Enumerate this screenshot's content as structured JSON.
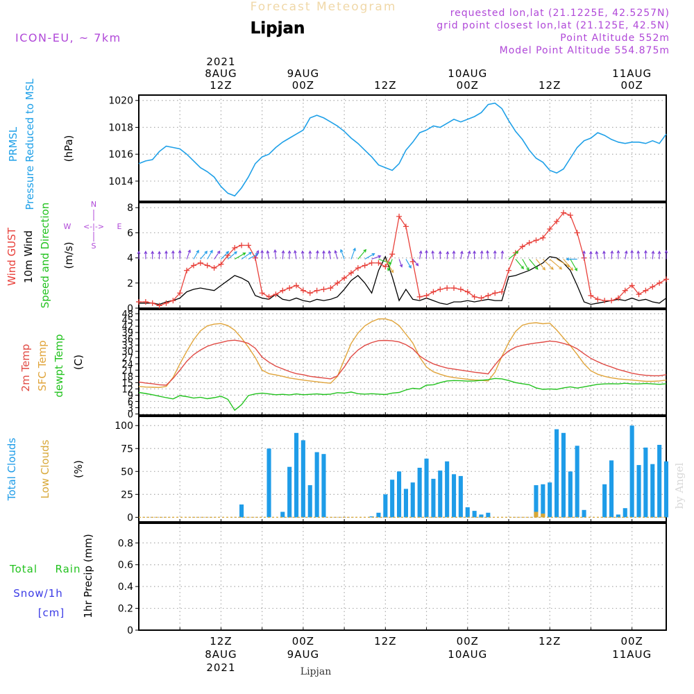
{
  "header": {
    "product": "Forecast Meteogram",
    "location": "Lipjan",
    "model": "ICON-EU, ~ 7km",
    "requested": "requested lon,lat (21.1225E, 42.5257N)",
    "grid_point": "grid point closest lon,lat (21.125E, 42.5N)",
    "point_alt": "Point Altitude 552m",
    "model_alt": "Model Point Altitude 554.875m",
    "footer": "Lipjan",
    "watermark": "by Angel"
  },
  "colors": {
    "pressure": "#1ea0e8",
    "gust": "#e8403a",
    "wind": "#000000",
    "temp2m": "#e04a44",
    "sfc": "#e0a43a",
    "dewpt": "#22c21e",
    "total_clouds": "#1e9ce8",
    "low_clouds": "#d8a838",
    "rain": "#22c21e",
    "snow": "#3a3ae6",
    "purple": "#b048d8"
  },
  "time_axis": {
    "top": [
      {
        "h": 12,
        "lines": [
          "2021",
          "8AUG",
          "12Z"
        ]
      },
      {
        "h": 24,
        "lines": [
          "9AUG",
          "00Z"
        ]
      },
      {
        "h": 36,
        "lines": [
          "12Z"
        ]
      },
      {
        "h": 48,
        "lines": [
          "10AUG",
          "00Z"
        ]
      },
      {
        "h": 60,
        "lines": [
          "12Z"
        ]
      },
      {
        "h": 72,
        "lines": [
          "11AUG",
          "00Z"
        ]
      }
    ],
    "bottom": [
      {
        "h": 12,
        "lines": [
          "12Z",
          "8AUG",
          "2021"
        ]
      },
      {
        "h": 24,
        "lines": [
          "00Z",
          "9AUG"
        ]
      },
      {
        "h": 36,
        "lines": [
          "12Z"
        ]
      },
      {
        "h": 48,
        "lines": [
          "00Z",
          "10AUG"
        ]
      },
      {
        "h": 60,
        "lines": [
          "12Z"
        ]
      },
      {
        "h": 72,
        "lines": [
          "00Z",
          "11AUG"
        ]
      }
    ]
  },
  "panels": {
    "pressure": {
      "labels": [
        "PRMSL",
        "Pressure Reduced to MSL"
      ],
      "unit": "(hPa)",
      "ticks": [
        "1020",
        "1018",
        "1016",
        "1014"
      ]
    },
    "wind": {
      "labels": [
        "Wind GUST",
        "10m Wind",
        "Speed and Direction"
      ],
      "unit": "(m/s)",
      "ticks": [
        "8",
        "6",
        "4",
        "2",
        "0"
      ],
      "compass": {
        "n": "N",
        "s": "S",
        "w": "W",
        "e": "E",
        "rose": "<-|->"
      }
    },
    "temperature": {
      "labels": [
        "2m Temp",
        "SFC Temp",
        "dewpt Temp"
      ],
      "unit": "(C)",
      "ticks": [
        "48",
        "45",
        "42",
        "39",
        "36",
        "33",
        "30",
        "27",
        "24",
        "21",
        "18",
        "15",
        "12",
        "9",
        "6",
        "3",
        "0"
      ]
    },
    "clouds": {
      "labels": [
        "Total Clouds",
        "Low Clouds"
      ],
      "unit": "(%)",
      "ticks": [
        "100",
        "75",
        "50",
        "25",
        "0"
      ]
    },
    "precip": {
      "labels": [
        "Total",
        "Rain",
        "Snow/1h",
        "[cm]"
      ],
      "unit": "1hr Precip (mm)",
      "ticks": [
        "0.8",
        "0.6",
        "0.4",
        "0.2",
        "0"
      ]
    }
  },
  "chart_data": {
    "type": "line",
    "x_unit": "hours from 2021-08-08 00Z",
    "x_range": [
      0,
      77
    ],
    "pressure": {
      "name": "PRMSL",
      "ylim": [
        1012.5,
        1020.4
      ],
      "x": [
        0,
        1,
        2,
        3,
        4,
        5,
        6,
        7,
        8,
        9,
        10,
        11,
        12,
        13,
        14,
        15,
        16,
        17,
        18,
        19,
        20,
        21,
        22,
        23,
        24,
        25,
        26,
        27,
        28,
        29,
        30,
        31,
        32,
        33,
        34,
        35,
        36,
        37,
        38,
        39,
        40,
        41,
        42,
        43,
        44,
        45,
        46,
        47,
        48,
        49,
        50,
        51,
        52,
        53,
        54,
        55,
        56,
        57,
        58,
        59,
        60,
        61,
        62,
        63,
        64,
        65,
        66,
        67,
        68,
        69,
        70,
        71,
        72,
        73,
        74,
        75,
        76,
        77
      ],
      "y": [
        1015.3,
        1015.5,
        1015.6,
        1016.2,
        1016.6,
        1016.5,
        1016.4,
        1016.0,
        1015.5,
        1015.0,
        1014.7,
        1014.3,
        1013.6,
        1013.1,
        1012.9,
        1013.5,
        1014.3,
        1015.3,
        1015.8,
        1016.0,
        1016.5,
        1016.9,
        1017.2,
        1017.5,
        1017.8,
        1018.7,
        1018.9,
        1018.7,
        1018.4,
        1018.1,
        1017.7,
        1017.2,
        1016.8,
        1016.3,
        1015.8,
        1015.2,
        1015.0,
        1014.8,
        1015.3,
        1016.3,
        1016.9,
        1017.6,
        1017.8,
        1018.1,
        1018.0,
        1018.3,
        1018.6,
        1018.4,
        1018.6,
        1018.8,
        1019.1,
        1019.7,
        1019.8,
        1019.4,
        1018.5,
        1017.7,
        1017.1,
        1016.3,
        1015.7,
        1015.4,
        1014.8,
        1014.6,
        1014.9,
        1015.7,
        1016.5,
        1017.0,
        1017.2,
        1017.6,
        1017.4,
        1017.1,
        1016.9,
        1016.8,
        1016.9,
        1016.9,
        1016.8,
        1017.0,
        1016.8,
        1017.5
      ]
    },
    "wind": {
      "ylim": [
        0,
        8.4
      ],
      "x": [
        0,
        1,
        2,
        3,
        4,
        5,
        6,
        7,
        8,
        9,
        10,
        11,
        12,
        13,
        14,
        15,
        16,
        17,
        18,
        19,
        20,
        21,
        22,
        23,
        24,
        25,
        26,
        27,
        28,
        29,
        30,
        31,
        32,
        33,
        34,
        35,
        36,
        37,
        38,
        39,
        40,
        41,
        42,
        43,
        44,
        45,
        46,
        47,
        48,
        49,
        50,
        51,
        52,
        53,
        54,
        55,
        56,
        57,
        58,
        59,
        60,
        61,
        62,
        63,
        64,
        65,
        66,
        67,
        68,
        69,
        70,
        71,
        72,
        73,
        74,
        75,
        76,
        77
      ],
      "gust": [
        0.5,
        0.5,
        0.4,
        0.2,
        0.4,
        0.6,
        1.2,
        3.0,
        3.4,
        3.6,
        3.4,
        3.2,
        3.5,
        4.2,
        4.8,
        5.0,
        5.0,
        4.0,
        1.2,
        0.9,
        1.1,
        1.4,
        1.6,
        1.8,
        1.4,
        1.2,
        1.4,
        1.5,
        1.6,
        2.0,
        2.4,
        2.8,
        3.2,
        3.4,
        3.6,
        3.6,
        3.3,
        4.3,
        7.3,
        6.5,
        3.7,
        0.9,
        1.0,
        1.3,
        1.5,
        1.6,
        1.6,
        1.5,
        1.3,
        0.9,
        0.8,
        1.0,
        1.2,
        1.3,
        3.0,
        4.4,
        4.9,
        5.2,
        5.4,
        5.6,
        6.3,
        6.9,
        7.6,
        7.4,
        6.0,
        4.0,
        1.0,
        0.7,
        0.6,
        0.6,
        0.8,
        1.4,
        1.8,
        1.1,
        1.4,
        1.7,
        2.0,
        2.3
      ],
      "speed": [
        0.4,
        0.4,
        0.4,
        0.3,
        0.5,
        0.6,
        0.8,
        1.3,
        1.5,
        1.6,
        1.5,
        1.4,
        1.8,
        2.2,
        2.6,
        2.4,
        2.1,
        1.0,
        0.8,
        0.7,
        1.1,
        0.7,
        0.6,
        0.8,
        0.6,
        0.5,
        0.7,
        0.6,
        0.7,
        0.9,
        1.5,
        2.2,
        2.6,
        2.0,
        1.2,
        3.0,
        4.1,
        2.5,
        0.6,
        1.5,
        0.7,
        0.6,
        0.8,
        0.6,
        0.4,
        0.3,
        0.5,
        0.5,
        0.6,
        0.5,
        0.6,
        0.7,
        0.6,
        0.6,
        2.5,
        2.6,
        2.8,
        3.0,
        3.3,
        3.6,
        4.1,
        4.0,
        3.6,
        3.0,
        1.8,
        0.5,
        0.3,
        0.4,
        0.5,
        0.6,
        0.7,
        0.6,
        0.8,
        0.6,
        0.7,
        0.5,
        0.4,
        0.8
      ],
      "dir_deg": [
        180,
        180,
        180,
        180,
        180,
        180,
        180,
        200,
        210,
        220,
        210,
        215,
        225,
        230,
        240,
        235,
        240,
        200,
        180,
        170,
        175,
        185,
        180,
        170,
        175,
        180,
        185,
        180,
        170,
        165,
        160,
        200,
        220,
        240,
        250,
        290,
        330,
        20,
        340,
        330,
        320,
        190,
        180,
        175,
        180,
        185,
        180,
        190,
        195,
        180,
        185,
        175,
        180,
        185,
        230,
        320,
        330,
        320,
        320,
        315,
        310,
        300,
        320,
        330,
        90,
        180,
        180,
        170,
        175,
        185,
        180,
        190,
        180,
        175,
        180,
        185,
        180,
        180
      ]
    },
    "temperature": {
      "ylim": [
        -0.5,
        50
      ],
      "x": [
        0,
        1,
        2,
        3,
        4,
        5,
        6,
        7,
        8,
        9,
        10,
        11,
        12,
        13,
        14,
        15,
        16,
        17,
        18,
        19,
        20,
        21,
        22,
        23,
        24,
        25,
        26,
        27,
        28,
        29,
        30,
        31,
        32,
        33,
        34,
        35,
        36,
        37,
        38,
        39,
        40,
        41,
        42,
        43,
        44,
        45,
        46,
        47,
        48,
        49,
        50,
        51,
        52,
        53,
        54,
        55,
        56,
        57,
        58,
        59,
        60,
        61,
        62,
        63,
        64,
        65,
        66,
        67,
        68,
        69,
        70,
        71,
        72,
        73,
        74,
        75,
        76,
        77
      ],
      "t2m": [
        15.3,
        14.8,
        14.5,
        14.0,
        13.8,
        17.0,
        21.0,
        25.2,
        28.4,
        30.6,
        32.4,
        33.5,
        34.2,
        35.0,
        35.3,
        34.8,
        33.8,
        31.5,
        27.2,
        24.8,
        22.9,
        21.6,
        20.3,
        19.3,
        18.8,
        18.0,
        17.6,
        17.2,
        16.8,
        18.2,
        22.5,
        27.4,
        30.6,
        32.8,
        34.2,
        35.1,
        35.2,
        35.0,
        34.5,
        33.2,
        31.2,
        27.8,
        25.6,
        24.0,
        22.9,
        22.0,
        21.5,
        21.0,
        20.5,
        20.0,
        19.6,
        19.2,
        23.5,
        27.4,
        30.2,
        32.0,
        32.9,
        33.5,
        34.0,
        34.4,
        34.9,
        34.6,
        33.8,
        32.8,
        31.2,
        28.8,
        26.6,
        25.0,
        23.6,
        22.5,
        21.3,
        20.4,
        19.5,
        18.9,
        18.5,
        18.3,
        18.3,
        18.8
      ],
      "sfc": [
        13.2,
        12.9,
        12.8,
        12.7,
        13.2,
        17.5,
        24.0,
        30.0,
        35.5,
        39.8,
        42.2,
        43.0,
        43.3,
        42.3,
        40.1,
        36.3,
        32.0,
        27.0,
        21.0,
        19.3,
        18.7,
        18.0,
        17.2,
        16.7,
        16.2,
        15.8,
        15.4,
        15.0,
        14.7,
        18.0,
        26.0,
        33.8,
        38.7,
        42.2,
        44.2,
        45.5,
        45.5,
        44.6,
        42.3,
        38.2,
        34.0,
        27.2,
        22.5,
        20.2,
        19.0,
        18.0,
        17.4,
        17.0,
        16.6,
        16.3,
        16.1,
        15.8,
        20.0,
        27.5,
        34.2,
        39.5,
        42.5,
        43.4,
        43.7,
        43.2,
        43.5,
        40.2,
        36.4,
        32.7,
        28.5,
        24.0,
        20.7,
        19.0,
        18.0,
        17.3,
        16.8,
        16.5,
        16.2,
        15.9,
        15.6,
        15.6,
        15.8,
        16.2
      ],
      "dewpt": [
        10.3,
        9.8,
        9.2,
        8.5,
        7.8,
        7.2,
        8.8,
        8.3,
        7.6,
        8.0,
        7.3,
        7.8,
        8.5,
        7.0,
        1.8,
        4.5,
        8.8,
        9.6,
        10.0,
        9.6,
        9.2,
        9.4,
        9.1,
        9.6,
        9.2,
        9.4,
        9.6,
        9.3,
        9.5,
        10.2,
        10.0,
        10.5,
        9.7,
        9.5,
        9.7,
        9.5,
        9.3,
        10.0,
        10.3,
        11.5,
        12.3,
        12.0,
        13.8,
        14.0,
        15.0,
        15.8,
        16.0,
        15.9,
        15.7,
        15.8,
        16.1,
        16.4,
        17.0,
        16.8,
        16.0,
        15.0,
        14.5,
        14.0,
        12.5,
        11.8,
        12.0,
        11.8,
        12.5,
        13.0,
        12.4,
        13.0,
        13.6,
        14.2,
        14.4,
        14.5,
        14.4,
        14.7,
        14.4,
        14.4,
        14.6,
        14.4,
        14.2,
        14.5
      ]
    },
    "clouds": {
      "ylim": [
        -5,
        110
      ],
      "x": [
        0,
        1,
        2,
        3,
        4,
        5,
        6,
        7,
        8,
        9,
        10,
        11,
        12,
        13,
        14,
        15,
        16,
        17,
        18,
        19,
        20,
        21,
        22,
        23,
        24,
        25,
        26,
        27,
        28,
        29,
        30,
        31,
        32,
        33,
        34,
        35,
        36,
        37,
        38,
        39,
        40,
        41,
        42,
        43,
        44,
        45,
        46,
        47,
        48,
        49,
        50,
        51,
        52,
        53,
        54,
        55,
        56,
        57,
        58,
        59,
        60,
        61,
        62,
        63,
        64,
        65,
        66,
        67,
        68,
        69,
        70,
        71,
        72,
        73,
        74,
        75,
        76,
        77
      ],
      "total": [
        0,
        0,
        0,
        0,
        0,
        0,
        0,
        0,
        0,
        0,
        0,
        0,
        0,
        0,
        0,
        14,
        0,
        0,
        0,
        75,
        0,
        6,
        55,
        92,
        84,
        35,
        71,
        69,
        0,
        0,
        0,
        0,
        0,
        0,
        1,
        5,
        25,
        41,
        50,
        31,
        38,
        54,
        64,
        42,
        51,
        61,
        47,
        45,
        11,
        7,
        3,
        5,
        0,
        0,
        0,
        0,
        0,
        0,
        35,
        36,
        38,
        96,
        92,
        50,
        78,
        8,
        0,
        0,
        36,
        62,
        3,
        10,
        100,
        57,
        76,
        58,
        79,
        61
      ],
      "low": [
        0,
        0,
        0,
        0,
        0,
        0,
        0,
        0,
        0,
        0,
        0,
        0,
        0,
        0,
        0,
        0,
        0,
        0,
        0,
        0,
        0,
        0,
        0,
        0,
        0,
        0,
        0,
        0,
        0,
        0,
        0,
        0,
        0,
        0,
        0,
        0,
        0,
        0,
        0,
        0,
        0,
        0,
        0,
        0,
        0,
        0,
        0,
        0,
        0,
        0,
        0,
        0,
        0,
        0,
        0,
        0,
        0,
        0,
        6,
        4,
        0,
        0,
        0,
        0,
        0,
        0,
        0,
        0,
        0,
        0,
        0,
        0,
        0,
        0,
        0,
        0,
        0,
        0
      ]
    },
    "precip": {
      "ylim": [
        0,
        0.98
      ],
      "x": [
        0,
        77
      ],
      "rain": [
        0,
        0
      ],
      "snow": [
        0,
        0
      ]
    }
  }
}
